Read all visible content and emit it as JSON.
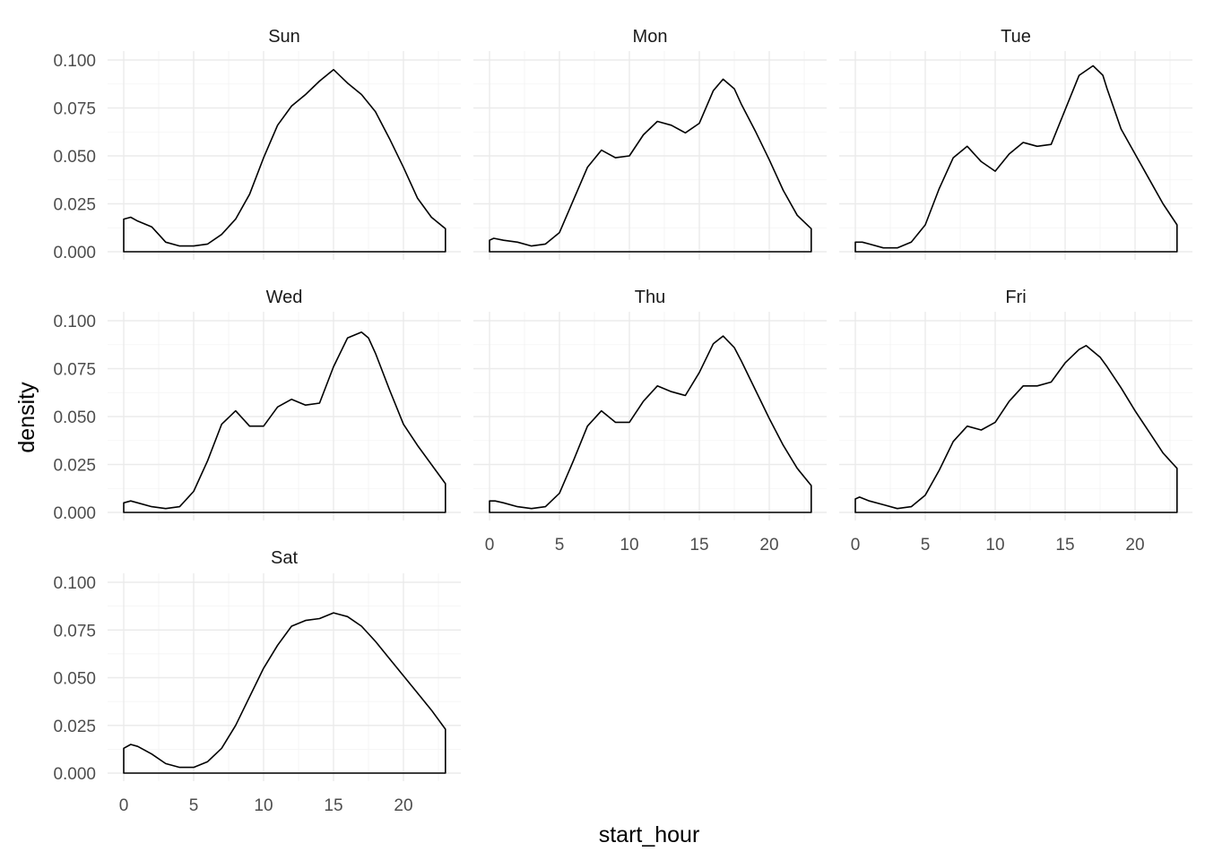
{
  "chart_data": {
    "type": "area",
    "xlabel": "start_hour",
    "ylabel": "density",
    "xlim": [
      0,
      23
    ],
    "ylim": [
      0,
      0.1
    ],
    "x_ticks": [
      0,
      5,
      10,
      15,
      20
    ],
    "x_tick_labels": [
      "0",
      "5",
      "10",
      "15",
      "20"
    ],
    "y_ticks": [
      0,
      0.025,
      0.05,
      0.075,
      0.1
    ],
    "y_tick_labels": [
      "0.000",
      "0.025",
      "0.050",
      "0.075",
      "0.100"
    ],
    "grid": true,
    "x_axis_labels_shown_on": [
      "Thu",
      "Fri",
      "Sat"
    ],
    "panels": [
      {
        "name": "Sun",
        "points": [
          [
            0,
            0.017
          ],
          [
            0.5,
            0.018
          ],
          [
            1,
            0.016
          ],
          [
            2,
            0.013
          ],
          [
            2.5,
            0.009
          ],
          [
            3,
            0.005
          ],
          [
            4,
            0.003
          ],
          [
            5,
            0.003
          ],
          [
            6,
            0.004
          ],
          [
            7,
            0.009
          ],
          [
            8,
            0.017
          ],
          [
            9,
            0.03
          ],
          [
            10,
            0.049
          ],
          [
            11,
            0.066
          ],
          [
            12,
            0.076
          ],
          [
            13,
            0.082
          ],
          [
            14,
            0.089
          ],
          [
            15,
            0.095
          ],
          [
            16,
            0.088
          ],
          [
            17,
            0.082
          ],
          [
            18,
            0.073
          ],
          [
            19,
            0.059
          ],
          [
            20,
            0.044
          ],
          [
            21,
            0.028
          ],
          [
            22,
            0.018
          ],
          [
            23,
            0.012
          ]
        ]
      },
      {
        "name": "Mon",
        "points": [
          [
            0,
            0.006
          ],
          [
            0.3,
            0.007
          ],
          [
            1,
            0.006
          ],
          [
            2,
            0.005
          ],
          [
            3,
            0.003
          ],
          [
            4,
            0.004
          ],
          [
            5,
            0.01
          ],
          [
            6,
            0.027
          ],
          [
            7,
            0.044
          ],
          [
            8,
            0.053
          ],
          [
            9,
            0.049
          ],
          [
            10,
            0.05
          ],
          [
            11,
            0.061
          ],
          [
            12,
            0.068
          ],
          [
            13,
            0.066
          ],
          [
            14,
            0.062
          ],
          [
            15,
            0.067
          ],
          [
            16,
            0.084
          ],
          [
            16.7,
            0.09
          ],
          [
            17.5,
            0.085
          ],
          [
            18,
            0.077
          ],
          [
            19,
            0.063
          ],
          [
            20,
            0.048
          ],
          [
            21,
            0.032
          ],
          [
            22,
            0.019
          ],
          [
            23,
            0.012
          ]
        ]
      },
      {
        "name": "Tue",
        "points": [
          [
            0,
            0.005
          ],
          [
            0.5,
            0.005
          ],
          [
            1,
            0.004
          ],
          [
            2,
            0.002
          ],
          [
            3,
            0.002
          ],
          [
            4,
            0.005
          ],
          [
            5,
            0.014
          ],
          [
            6,
            0.033
          ],
          [
            7,
            0.049
          ],
          [
            8,
            0.055
          ],
          [
            9,
            0.047
          ],
          [
            10,
            0.042
          ],
          [
            11,
            0.051
          ],
          [
            12,
            0.057
          ],
          [
            13,
            0.055
          ],
          [
            14,
            0.056
          ],
          [
            15,
            0.074
          ],
          [
            16,
            0.092
          ],
          [
            17,
            0.097
          ],
          [
            17.7,
            0.092
          ],
          [
            18,
            0.085
          ],
          [
            19,
            0.064
          ],
          [
            20,
            0.051
          ],
          [
            21,
            0.038
          ],
          [
            22,
            0.025
          ],
          [
            23,
            0.014
          ]
        ]
      },
      {
        "name": "Wed",
        "points": [
          [
            0,
            0.005
          ],
          [
            0.5,
            0.006
          ],
          [
            1,
            0.005
          ],
          [
            2,
            0.003
          ],
          [
            3,
            0.002
          ],
          [
            4,
            0.003
          ],
          [
            5,
            0.011
          ],
          [
            6,
            0.027
          ],
          [
            7,
            0.046
          ],
          [
            8,
            0.053
          ],
          [
            9,
            0.045
          ],
          [
            10,
            0.045
          ],
          [
            11,
            0.055
          ],
          [
            12,
            0.059
          ],
          [
            13,
            0.056
          ],
          [
            14,
            0.057
          ],
          [
            15,
            0.076
          ],
          [
            16,
            0.091
          ],
          [
            17,
            0.094
          ],
          [
            17.5,
            0.091
          ],
          [
            18,
            0.083
          ],
          [
            19,
            0.064
          ],
          [
            20,
            0.046
          ],
          [
            21,
            0.035
          ],
          [
            22,
            0.025
          ],
          [
            23,
            0.015
          ]
        ]
      },
      {
        "name": "Thu",
        "points": [
          [
            0,
            0.006
          ],
          [
            0.4,
            0.006
          ],
          [
            1,
            0.005
          ],
          [
            2,
            0.003
          ],
          [
            3,
            0.002
          ],
          [
            4,
            0.003
          ],
          [
            5,
            0.01
          ],
          [
            6,
            0.027
          ],
          [
            7,
            0.045
          ],
          [
            8,
            0.053
          ],
          [
            9,
            0.047
          ],
          [
            10,
            0.047
          ],
          [
            11,
            0.058
          ],
          [
            12,
            0.066
          ],
          [
            13,
            0.063
          ],
          [
            14,
            0.061
          ],
          [
            15,
            0.073
          ],
          [
            16,
            0.088
          ],
          [
            16.7,
            0.092
          ],
          [
            17.5,
            0.086
          ],
          [
            18,
            0.079
          ],
          [
            19,
            0.064
          ],
          [
            20,
            0.049
          ],
          [
            21,
            0.035
          ],
          [
            22,
            0.023
          ],
          [
            23,
            0.014
          ]
        ]
      },
      {
        "name": "Fri",
        "points": [
          [
            0,
            0.007
          ],
          [
            0.3,
            0.008
          ],
          [
            1,
            0.006
          ],
          [
            2,
            0.004
          ],
          [
            3,
            0.002
          ],
          [
            4,
            0.003
          ],
          [
            5,
            0.009
          ],
          [
            6,
            0.022
          ],
          [
            7,
            0.037
          ],
          [
            8,
            0.045
          ],
          [
            9,
            0.043
          ],
          [
            10,
            0.047
          ],
          [
            11,
            0.058
          ],
          [
            12,
            0.066
          ],
          [
            13,
            0.066
          ],
          [
            14,
            0.068
          ],
          [
            15,
            0.078
          ],
          [
            16,
            0.085
          ],
          [
            16.5,
            0.087
          ],
          [
            17.5,
            0.081
          ],
          [
            18,
            0.076
          ],
          [
            19,
            0.065
          ],
          [
            20,
            0.053
          ],
          [
            21,
            0.042
          ],
          [
            22,
            0.031
          ],
          [
            23,
            0.023
          ]
        ]
      },
      {
        "name": "Sat",
        "points": [
          [
            0,
            0.013
          ],
          [
            0.5,
            0.015
          ],
          [
            1,
            0.014
          ],
          [
            2,
            0.01
          ],
          [
            3,
            0.005
          ],
          [
            4,
            0.003
          ],
          [
            5,
            0.003
          ],
          [
            6,
            0.006
          ],
          [
            7,
            0.013
          ],
          [
            8,
            0.025
          ],
          [
            9,
            0.04
          ],
          [
            10,
            0.055
          ],
          [
            11,
            0.067
          ],
          [
            12,
            0.077
          ],
          [
            13,
            0.08
          ],
          [
            14,
            0.081
          ],
          [
            15,
            0.084
          ],
          [
            16,
            0.082
          ],
          [
            17,
            0.077
          ],
          [
            18,
            0.069
          ],
          [
            19,
            0.06
          ],
          [
            20,
            0.051
          ],
          [
            21,
            0.042
          ],
          [
            22,
            0.033
          ],
          [
            23,
            0.023
          ]
        ]
      }
    ]
  }
}
